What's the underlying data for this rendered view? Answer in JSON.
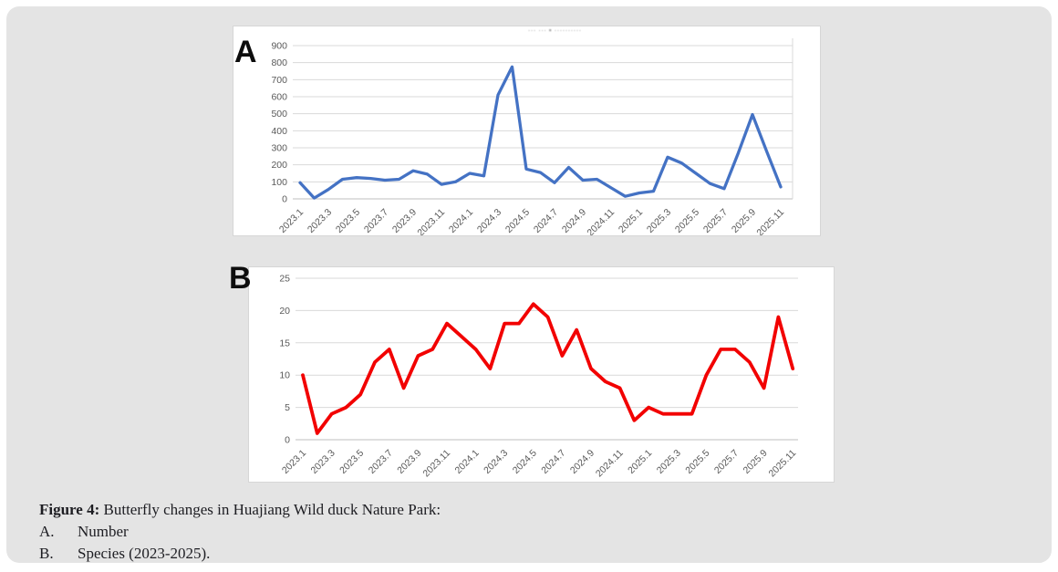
{
  "figure": {
    "panel_a_letter": "A",
    "panel_b_letter": "B",
    "clipped_title_glyphs": "··· ··· ▪ ··········"
  },
  "caption": {
    "label": "Figure 4:",
    "text": " Butterfly changes in Huajiang Wild duck Nature Park:",
    "items": [
      {
        "marker": "A.",
        "text": "Number"
      },
      {
        "marker": "B.",
        "text": "Species (2023-2025)."
      }
    ]
  },
  "style": {
    "card_bg": "#e4e4e4",
    "panel_bg": "#ffffff",
    "grid_color": "#d9d9d9",
    "zero_axis_color": "#bfbfbf",
    "tick_label_color": "#595959",
    "line_a_color": "#4472c4",
    "line_b_color": "#f20000"
  },
  "chart_data": [
    {
      "id": "number",
      "panel": "A",
      "type": "line",
      "series_name": "Butterfly number",
      "color": "#4472c4",
      "x": [
        "2023.1",
        "2023.2",
        "2023.3",
        "2023.4",
        "2023.5",
        "2023.6",
        "2023.7",
        "2023.8",
        "2023.9",
        "2023.10",
        "2023.11",
        "2023.12",
        "2024.1",
        "2024.2",
        "2024.3",
        "2024.4",
        "2024.5",
        "2024.6",
        "2024.7",
        "2024.8",
        "2024.9",
        "2024.10",
        "2024.11",
        "2024.12",
        "2025.1",
        "2025.2",
        "2025.3",
        "2025.4",
        "2025.5",
        "2025.6",
        "2025.7",
        "2025.8",
        "2025.9",
        "2025.10",
        "2025.11"
      ],
      "values": [
        95,
        5,
        55,
        115,
        125,
        120,
        110,
        115,
        165,
        145,
        85,
        100,
        150,
        135,
        610,
        775,
        175,
        155,
        95,
        185,
        110,
        115,
        65,
        15,
        35,
        45,
        245,
        210,
        150,
        90,
        60,
        270,
        495,
        280,
        70
      ],
      "x_tick_labels": [
        "2023.1",
        "2023.3",
        "2023.5",
        "2023.7",
        "2023.9",
        "2023.11",
        "2024.1",
        "2024.3",
        "2024.5",
        "2024.7",
        "2024.9",
        "2024.11",
        "2025.1",
        "2025.3",
        "2025.5",
        "2025.7",
        "2025.9",
        "2025.11"
      ],
      "y_ticks": [
        0,
        100,
        200,
        300,
        400,
        500,
        600,
        700,
        800,
        900
      ],
      "ylim": [
        0,
        900
      ],
      "grid": true,
      "legend": "none"
    },
    {
      "id": "species",
      "panel": "B",
      "type": "line",
      "series_name": "Butterfly species",
      "color": "#f20000",
      "x": [
        "2023.1",
        "2023.2",
        "2023.3",
        "2023.4",
        "2023.5",
        "2023.6",
        "2023.7",
        "2023.8",
        "2023.9",
        "2023.10",
        "2023.11",
        "2023.12",
        "2024.1",
        "2024.2",
        "2024.3",
        "2024.4",
        "2024.5",
        "2024.6",
        "2024.7",
        "2024.8",
        "2024.9",
        "2024.10",
        "2024.11",
        "2024.12",
        "2025.1",
        "2025.2",
        "2025.3",
        "2025.4",
        "2025.5",
        "2025.6",
        "2025.7",
        "2025.8",
        "2025.9",
        "2025.10",
        "2025.11"
      ],
      "values": [
        10,
        1,
        4,
        5,
        7,
        12,
        14,
        8,
        13,
        14,
        18,
        16,
        14,
        11,
        18,
        18,
        21,
        19,
        13,
        17,
        11,
        9,
        8,
        3,
        5,
        4,
        4,
        4,
        10,
        14,
        14,
        12,
        8,
        19,
        11
      ],
      "x_tick_labels": [
        "2023.1",
        "2023.3",
        "2023.5",
        "2023.7",
        "2023.9",
        "2023.11",
        "2024.1",
        "2024.3",
        "2024.5",
        "2024.7",
        "2024.9",
        "2024.11",
        "2025.1",
        "2025.3",
        "2025.5",
        "2025.7",
        "2025.9",
        "2025.11"
      ],
      "y_ticks": [
        0,
        5,
        10,
        15,
        20,
        25
      ],
      "ylim": [
        0,
        25
      ],
      "grid": true,
      "legend": "none"
    }
  ]
}
